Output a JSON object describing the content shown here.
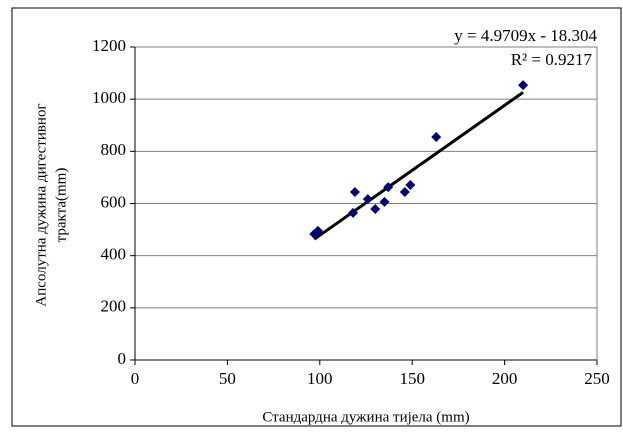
{
  "chart_data": {
    "type": "scatter",
    "x_label": "Стандардна дужина тијела (mm)",
    "y_label": [
      "Апсолутна дужина дигестивног",
      "тракта(mm)"
    ],
    "series": [
      {
        "color": "#000080",
        "x": [
          97,
          99,
          118,
          119,
          126,
          130,
          135,
          137,
          146,
          149,
          163,
          210
        ],
        "values": [
          483,
          495,
          564,
          644,
          617,
          579,
          606,
          663,
          644,
          671,
          855,
          1054
        ]
      }
    ],
    "trendline": {
      "equation": "y = 4.9709x - 18.304",
      "r2": "R² = 0.9217",
      "color": "#000000"
    },
    "xlim": [
      0,
      250
    ],
    "xticks": [
      0,
      50,
      100,
      150,
      200,
      250
    ],
    "ylim": [
      0,
      1200
    ],
    "yticks": [
      0,
      200,
      400,
      600,
      800,
      1000,
      1200
    ],
    "grid": true
  }
}
